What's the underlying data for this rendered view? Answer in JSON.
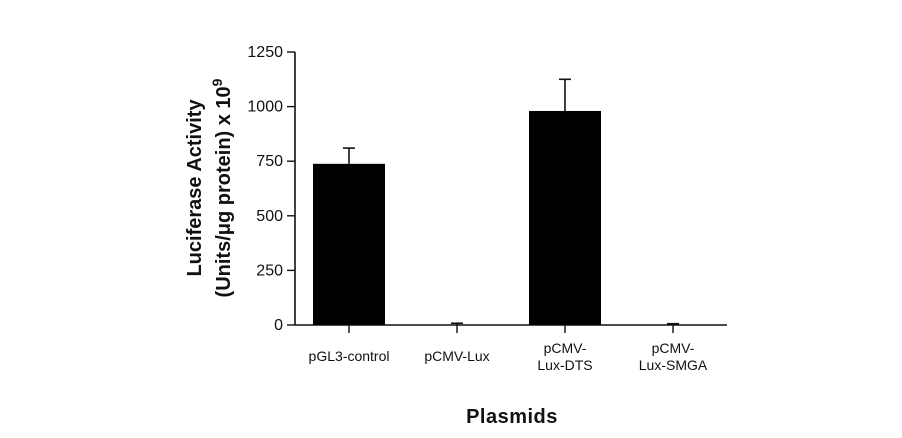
{
  "chart_data": {
    "type": "bar",
    "title": "",
    "xlabel": "Plasmids",
    "ylabel": {
      "line1": "Luciferase Activity",
      "line2_prefix": "(Units/μg protein) x 10",
      "line2_superscript": "9"
    },
    "categories": [
      [
        "pGL3-control"
      ],
      [
        "pCMV-Lux"
      ],
      [
        "pCMV-",
        "Lux-DTS"
      ],
      [
        "pCMV-",
        "Lux-SMGA"
      ]
    ],
    "values": [
      738,
      0,
      980,
      0
    ],
    "error_upper": [
      810,
      8,
      1125,
      6
    ],
    "ylim": [
      0,
      1250
    ],
    "yticks": [
      0,
      250,
      500,
      750,
      1000,
      1250
    ],
    "ytick_labels": [
      "0",
      "250",
      "500",
      "750",
      "1000",
      "1250"
    ],
    "grid": false,
    "bar_color": "#000000",
    "axis_color": "#111111"
  }
}
